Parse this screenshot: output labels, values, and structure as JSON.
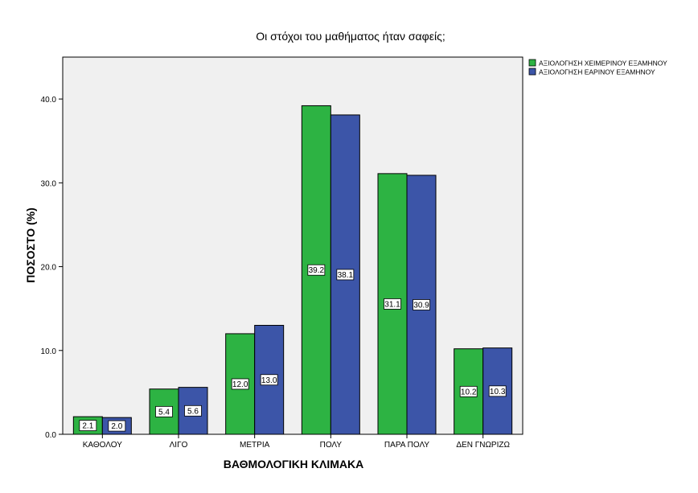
{
  "chart_data": {
    "type": "bar",
    "title": "Οι στόχοι του μαθήματος ήταν σαφείς;",
    "xlabel": "ΒΑΘΜΟΛΟΓΙΚΗ ΚΛΙΜΑΚΑ",
    "ylabel": "ΠΟΣΟΣΤΟ (%)",
    "ylim": [
      0,
      45
    ],
    "yticks": [
      "0.0",
      "10.0",
      "20.0",
      "30.0",
      "40.0"
    ],
    "ytick_values": [
      0,
      10,
      20,
      30,
      40
    ],
    "grid": false,
    "legend_position": "top-right",
    "categories": [
      "ΚΑΘΟΛΟΥ",
      "ΛΙΓΟ",
      "ΜΕΤΡΙΑ",
      "ΠΟΛΥ",
      "ΠΑΡΑ ΠΟΛΥ",
      "ΔΕΝ ΓΝΩΡΙΖΩ"
    ],
    "series": [
      {
        "name": "ΑΞΙΟΛΟΓΗΣΗ ΧΕΙΜΕΡΙΝΟΥ ΕΞΑΜΗΝΟΥ",
        "color": "#2db343",
        "values": [
          2.1,
          5.4,
          12.0,
          39.2,
          31.1,
          10.2
        ],
        "labels": [
          "2.1",
          "5.4",
          "12.0",
          "39.2",
          "31.1",
          "10.2"
        ]
      },
      {
        "name": "ΑΞΙΟΛΟΓΗΣΗ ΕΑΡΙΝΟΥ ΕΞΑΜΗΝΟΥ",
        "color": "#3c55a8",
        "values": [
          2.0,
          5.6,
          13.0,
          38.1,
          30.9,
          10.3
        ],
        "labels": [
          "2.0",
          "5.6",
          "13.0",
          "38.1",
          "30.9",
          "10.3"
        ]
      }
    ],
    "plot_background": "#f0f0f0"
  }
}
